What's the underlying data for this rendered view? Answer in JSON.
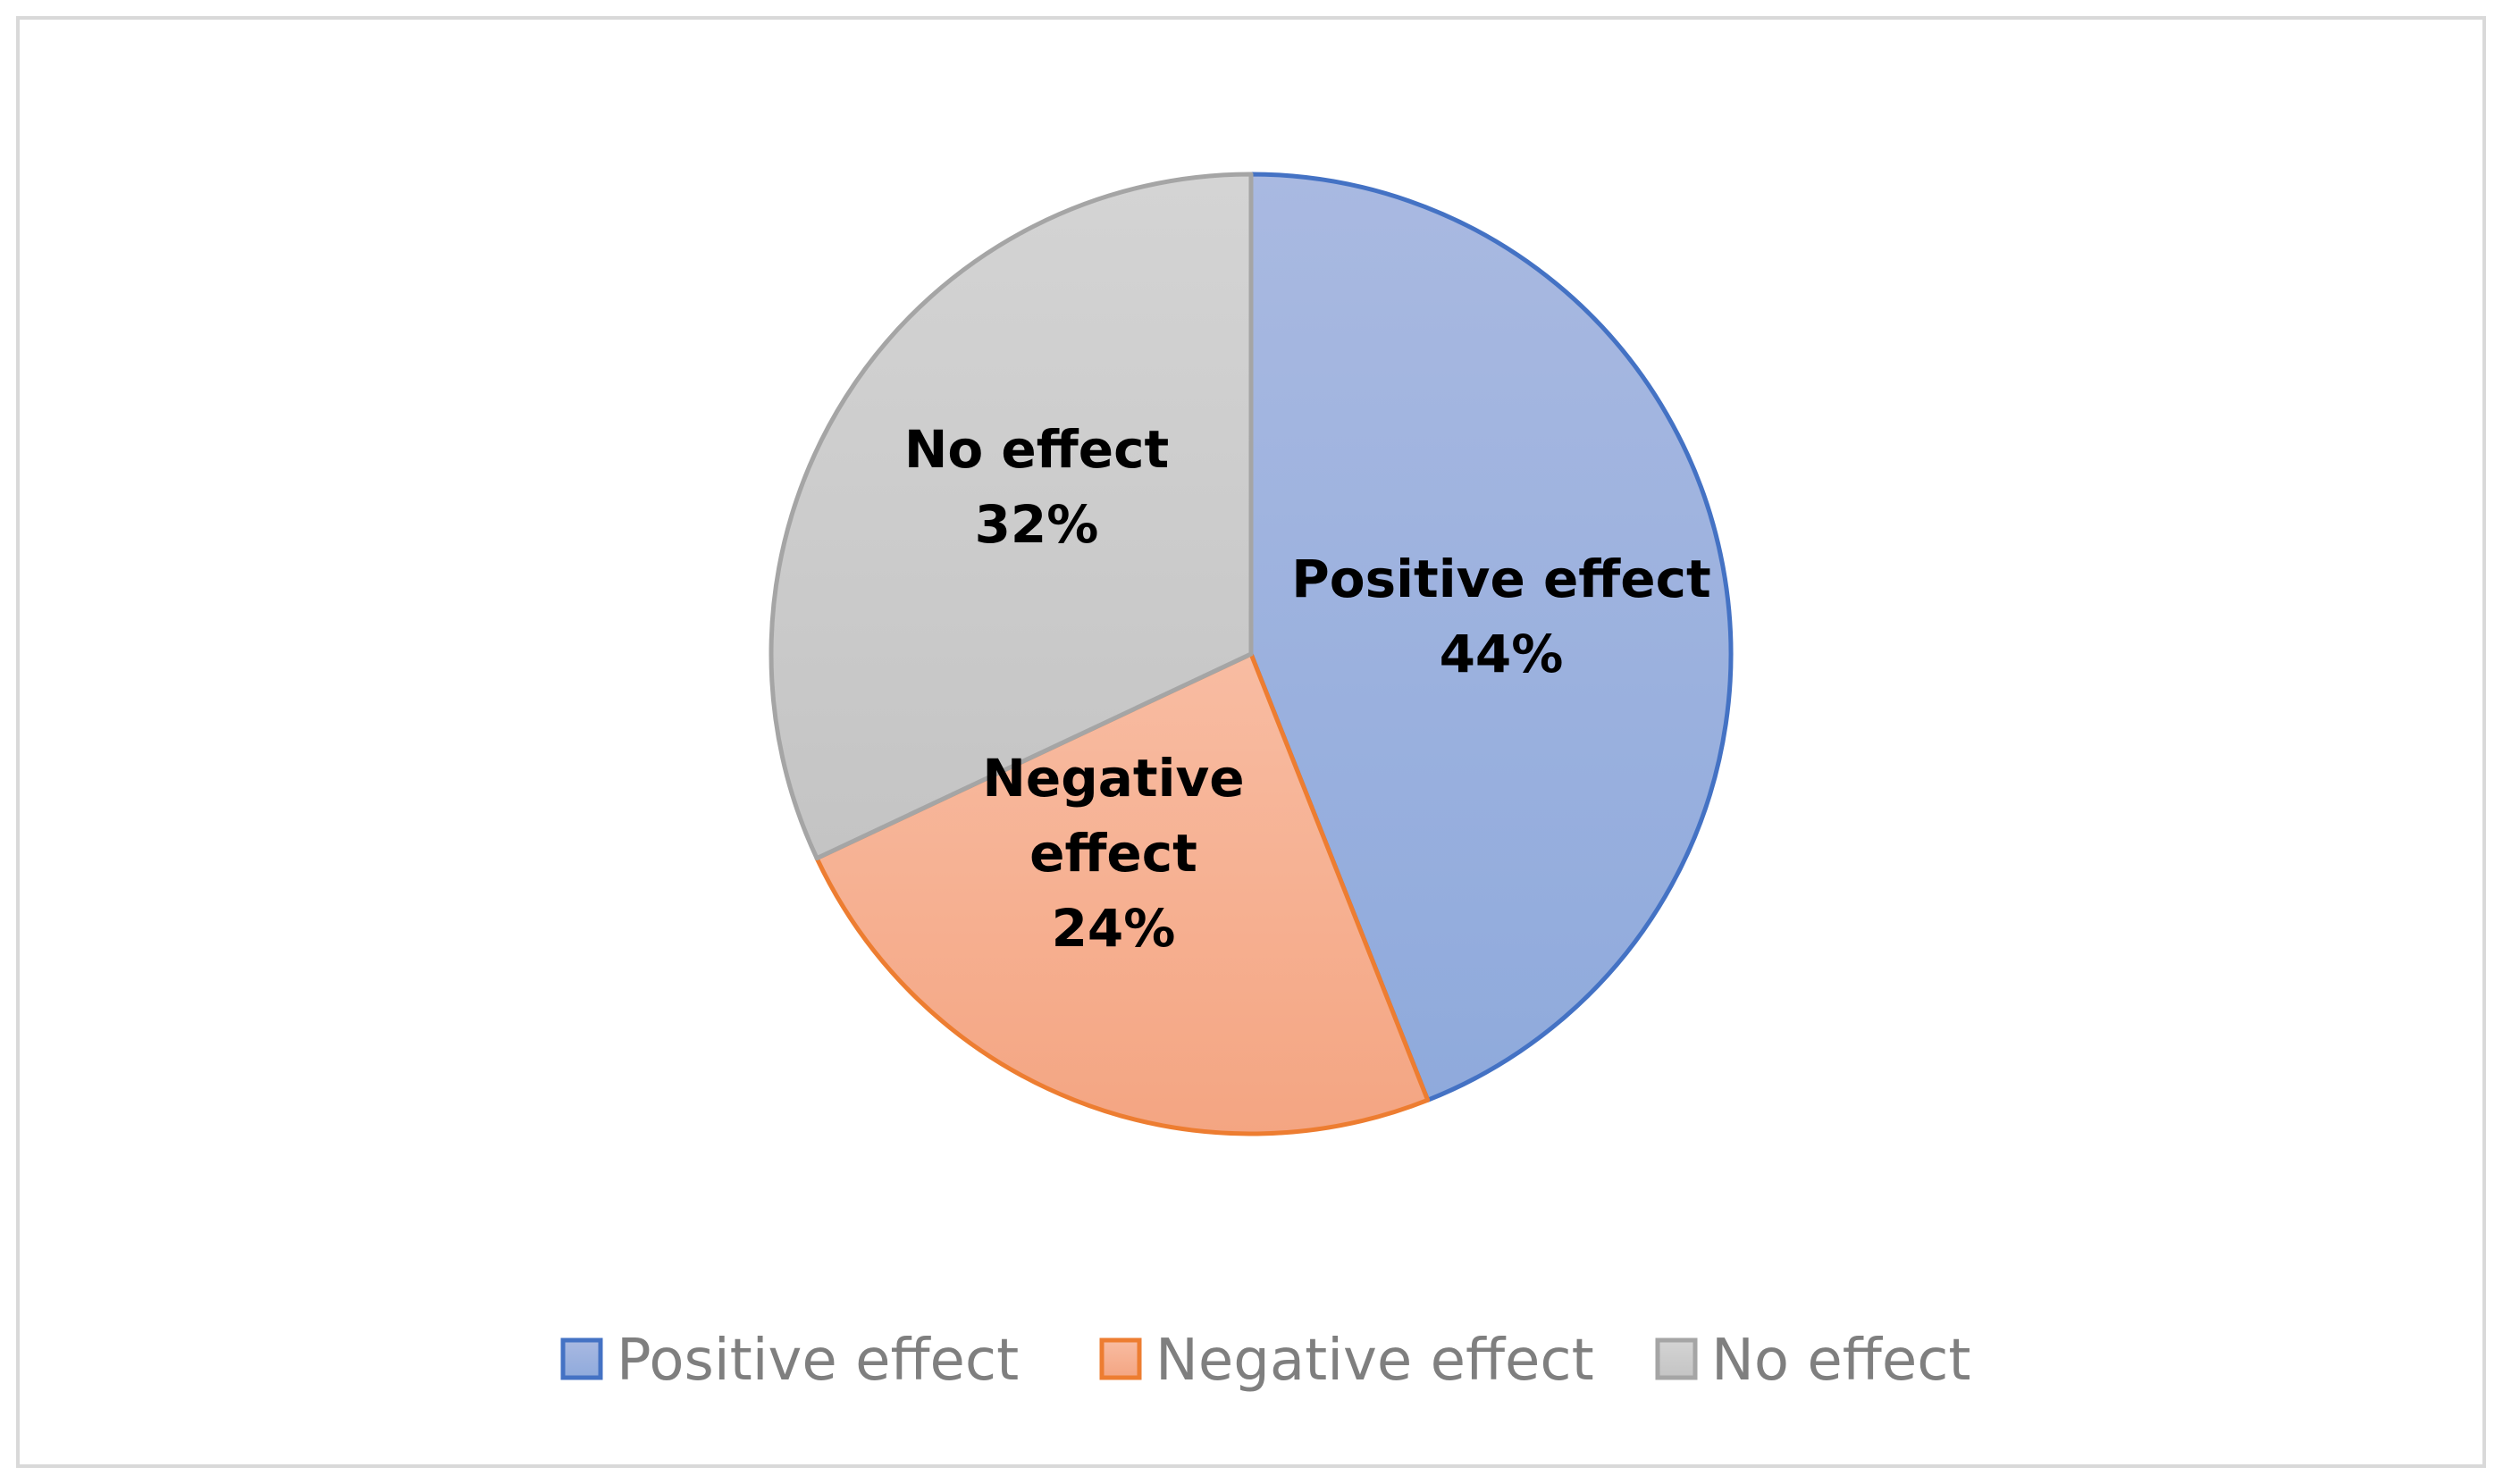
{
  "chart_data": {
    "type": "pie",
    "title": "",
    "slices": [
      {
        "label": "Positive effect",
        "value": 44,
        "value_text": "44%",
        "label_lines": [
          "Positive effect",
          "44%"
        ],
        "color": "#8faadc",
        "color_light": "#a9b9e1",
        "border": "#4472c4"
      },
      {
        "label": "Negative effect",
        "value": 24,
        "value_text": "24%",
        "label_lines": [
          "Negative",
          "effect",
          "24%"
        ],
        "color": "#f4a582",
        "color_light": "#f8bca2",
        "border": "#ed7d31"
      },
      {
        "label": "No effect",
        "value": 32,
        "value_text": "32%",
        "label_lines": [
          "No effect",
          "32%"
        ],
        "color": "#c4c4c4",
        "color_light": "#d4d4d4",
        "border": "#a5a5a5"
      }
    ],
    "start_angle": "12 o'clock",
    "direction": "clockwise",
    "legend": {
      "position": "bottom",
      "items": [
        "Positive effect",
        "Negative effect",
        "No effect"
      ]
    }
  }
}
